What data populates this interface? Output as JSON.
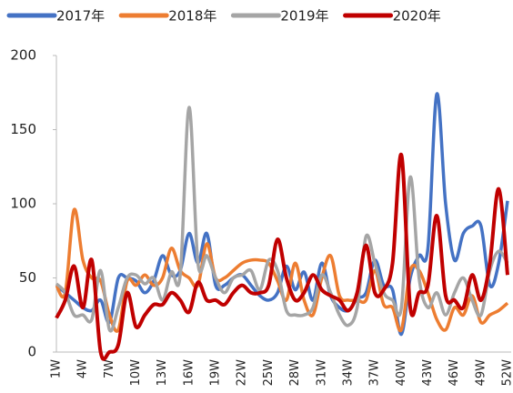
{
  "chart_data": {
    "type": "line",
    "categories": [
      "1W",
      null,
      null,
      "4W",
      null,
      null,
      "7W",
      null,
      null,
      "10W",
      null,
      null,
      "13W",
      null,
      null,
      "16W",
      null,
      null,
      "19W",
      null,
      null,
      "22W",
      null,
      null,
      "25W",
      null,
      null,
      "28W",
      null,
      null,
      "31W",
      null,
      null,
      "34W",
      null,
      null,
      "37W",
      null,
      null,
      "40W",
      null,
      null,
      "43W",
      null,
      null,
      "46W",
      null,
      null,
      "49W",
      null,
      null,
      "52W"
    ],
    "series": [
      {
        "name": "2017年",
        "color": "#4472c4",
        "values": [
          45,
          40,
          35,
          30,
          28,
          35,
          20,
          50,
          50,
          48,
          40,
          48,
          65,
          52,
          55,
          80,
          60,
          80,
          45,
          45,
          50,
          52,
          45,
          38,
          35,
          40,
          58,
          42,
          54,
          35,
          60,
          38,
          30,
          28,
          36,
          40,
          62,
          45,
          42,
          12,
          50,
          65,
          70,
          174,
          100,
          62,
          80,
          85,
          85,
          45,
          60,
          102
        ]
      },
      {
        "name": "2018年",
        "color": "#ed7d31",
        "values": [
          45,
          40,
          96,
          62,
          50,
          48,
          25,
          15,
          48,
          45,
          52,
          45,
          50,
          70,
          55,
          50,
          45,
          73,
          50,
          50,
          55,
          60,
          62,
          62,
          60,
          48,
          35,
          60,
          35,
          25,
          50,
          65,
          38,
          35,
          35,
          35,
          55,
          32,
          30,
          15,
          55,
          55,
          40,
          22,
          15,
          30,
          25,
          38,
          20,
          25,
          28,
          33
        ]
      },
      {
        "name": "2019年",
        "color": "#a5a5a5",
        "values": [
          46,
          40,
          25,
          25,
          22,
          55,
          15,
          30,
          50,
          52,
          46,
          50,
          35,
          54,
          52,
          165,
          60,
          65,
          50,
          40,
          50,
          52,
          55,
          42,
          62,
          55,
          28,
          25,
          25,
          30,
          52,
          40,
          25,
          18,
          30,
          78,
          60,
          40,
          35,
          30,
          118,
          50,
          30,
          40,
          25,
          40,
          50,
          35,
          25,
          55,
          68,
          60
        ]
      },
      {
        "name": "2020年",
        "color": "#c00000",
        "values": [
          23,
          35,
          58,
          30,
          62,
          0,
          0,
          5,
          40,
          17,
          25,
          32,
          32,
          40,
          35,
          27,
          47,
          35,
          35,
          32,
          40,
          45,
          40,
          40,
          45,
          76,
          50,
          35,
          40,
          52,
          42,
          38,
          35,
          28,
          40,
          72,
          40,
          42,
          60,
          133,
          30,
          40,
          45,
          92,
          38,
          35,
          30,
          52,
          35,
          60,
          110,
          52
        ]
      }
    ],
    "ylim": [
      0,
      200
    ],
    "yticks": [
      0,
      50,
      100,
      150,
      200
    ]
  }
}
